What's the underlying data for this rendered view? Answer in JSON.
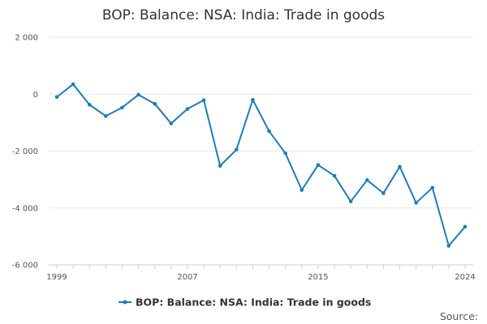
{
  "chart_data": {
    "type": "line",
    "title": "BOP: Balance: NSA: India: Trade in goods",
    "xlabel": "",
    "ylabel": "",
    "xlim": [
      1999,
      2024
    ],
    "ylim": [
      -6000,
      2000
    ],
    "grid": true,
    "legend_position": "bottom",
    "color": "#1a7dbd",
    "x_ticks": [
      1999,
      2007,
      2015,
      2024
    ],
    "x_tick_labels": [
      "1999",
      "2007",
      "2015",
      "2024"
    ],
    "y_ticks": [
      2000,
      0,
      -2000,
      -4000,
      -6000
    ],
    "y_tick_labels": [
      "2 000",
      "0",
      "-2 000",
      "-4 000",
      "-6 000"
    ],
    "series": [
      {
        "name": "BOP: Balance: NSA: India: Trade in goods",
        "x": [
          1999,
          2000,
          2001,
          2002,
          2003,
          2004,
          2005,
          2006,
          2007,
          2008,
          2009,
          2010,
          2011,
          2012,
          2013,
          2014,
          2015,
          2016,
          2017,
          2018,
          2019,
          2020,
          2021,
          2022,
          2023,
          2024
        ],
        "values": [
          -100,
          350,
          -370,
          -770,
          -470,
          -20,
          -340,
          -1030,
          -520,
          -210,
          -2520,
          -1950,
          -200,
          -1300,
          -2080,
          -3370,
          -2490,
          -2870,
          -3770,
          -3020,
          -3480,
          -2550,
          -3820,
          -3290,
          -5330,
          -4660
        ]
      }
    ],
    "source_label": "Source:"
  }
}
